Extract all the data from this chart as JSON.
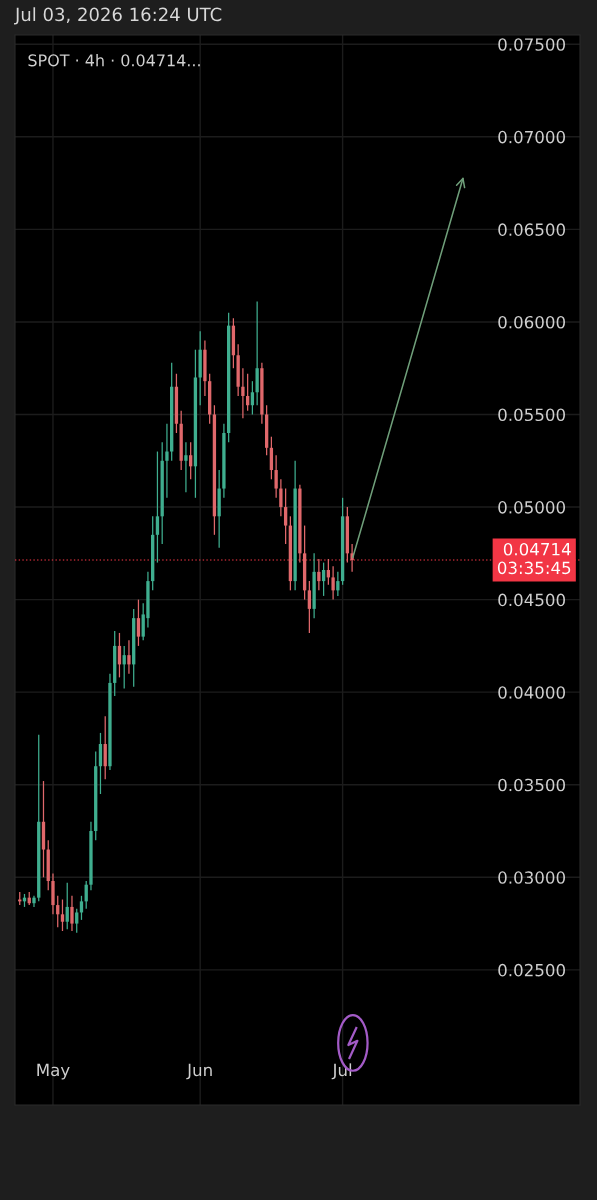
{
  "chart_data": {
    "type": "candlestick",
    "title": "Jul 03, 2026 16:24 UTC",
    "subtitle": "SPOT · 4h · 0.04714...",
    "x": [
      "2026-04-24",
      "2026-04-25",
      "2026-04-26",
      "2026-04-27",
      "2026-04-28",
      "2026-04-29",
      "2026-04-30",
      "2026-05-01",
      "2026-05-02",
      "2026-05-03",
      "2026-05-04",
      "2026-05-05",
      "2026-05-06",
      "2026-05-07",
      "2026-05-08",
      "2026-05-09",
      "2026-05-10",
      "2026-05-11",
      "2026-05-12",
      "2026-05-13",
      "2026-05-14",
      "2026-05-15",
      "2026-05-16",
      "2026-05-17",
      "2026-05-18",
      "2026-05-19",
      "2026-05-20",
      "2026-05-21",
      "2026-05-22",
      "2026-05-23",
      "2026-05-24",
      "2026-05-25",
      "2026-05-26",
      "2026-05-27",
      "2026-05-28",
      "2026-05-29",
      "2026-05-30",
      "2026-05-31",
      "2026-06-01",
      "2026-06-02",
      "2026-06-03",
      "2026-06-04",
      "2026-06-05",
      "2026-06-06",
      "2026-06-07",
      "2026-06-08",
      "2026-06-09",
      "2026-06-10",
      "2026-06-11",
      "2026-06-12",
      "2026-06-13",
      "2026-06-14",
      "2026-06-15",
      "2026-06-16",
      "2026-06-17",
      "2026-06-18",
      "2026-06-19",
      "2026-06-20",
      "2026-06-21",
      "2026-06-22",
      "2026-06-23",
      "2026-06-24",
      "2026-06-25",
      "2026-06-26",
      "2026-06-27",
      "2026-06-28",
      "2026-06-29",
      "2026-06-30",
      "2026-07-01",
      "2026-07-02",
      "2026-07-03"
    ],
    "ohlc": [
      [
        0.0288,
        0.0292,
        0.0285,
        0.0287
      ],
      [
        0.0287,
        0.0291,
        0.0284,
        0.0289
      ],
      [
        0.0289,
        0.0292,
        0.0285,
        0.0286
      ],
      [
        0.0286,
        0.029,
        0.0284,
        0.0289
      ],
      [
        0.0289,
        0.0377,
        0.0287,
        0.033
      ],
      [
        0.033,
        0.0352,
        0.03,
        0.0315
      ],
      [
        0.0315,
        0.032,
        0.0293,
        0.0298
      ],
      [
        0.0298,
        0.0302,
        0.028,
        0.0285
      ],
      [
        0.0285,
        0.029,
        0.0273,
        0.028
      ],
      [
        0.028,
        0.0288,
        0.0271,
        0.0276
      ],
      [
        0.0276,
        0.0297,
        0.0272,
        0.0284
      ],
      [
        0.0284,
        0.029,
        0.0271,
        0.0275
      ],
      [
        0.0275,
        0.0283,
        0.027,
        0.0281
      ],
      [
        0.0281,
        0.029,
        0.0277,
        0.0287
      ],
      [
        0.0287,
        0.0298,
        0.0283,
        0.0296
      ],
      [
        0.0296,
        0.033,
        0.0293,
        0.0325
      ],
      [
        0.0325,
        0.0368,
        0.032,
        0.036
      ],
      [
        0.036,
        0.0378,
        0.0345,
        0.0372
      ],
      [
        0.0372,
        0.0387,
        0.0353,
        0.036
      ],
      [
        0.036,
        0.041,
        0.0358,
        0.0405
      ],
      [
        0.0405,
        0.0433,
        0.0398,
        0.0425
      ],
      [
        0.0425,
        0.0432,
        0.0408,
        0.0415
      ],
      [
        0.0415,
        0.0425,
        0.0402,
        0.042
      ],
      [
        0.042,
        0.0428,
        0.041,
        0.0415
      ],
      [
        0.0415,
        0.0445,
        0.0403,
        0.044
      ],
      [
        0.044,
        0.045,
        0.0425,
        0.043
      ],
      [
        0.043,
        0.0448,
        0.0428,
        0.0442
      ],
      [
        0.044,
        0.0465,
        0.0435,
        0.046
      ],
      [
        0.046,
        0.0495,
        0.0455,
        0.0485
      ],
      [
        0.0485,
        0.053,
        0.047,
        0.0495
      ],
      [
        0.0495,
        0.0535,
        0.048,
        0.0525
      ],
      [
        0.0525,
        0.0545,
        0.0505,
        0.053
      ],
      [
        0.053,
        0.0578,
        0.0525,
        0.0565
      ],
      [
        0.0565,
        0.0572,
        0.054,
        0.0545
      ],
      [
        0.0545,
        0.0552,
        0.052,
        0.0525
      ],
      [
        0.0525,
        0.0535,
        0.0508,
        0.0528
      ],
      [
        0.0528,
        0.0535,
        0.0515,
        0.0522
      ],
      [
        0.0522,
        0.0585,
        0.0505,
        0.057
      ],
      [
        0.057,
        0.0595,
        0.0555,
        0.0585
      ],
      [
        0.0585,
        0.059,
        0.056,
        0.0568
      ],
      [
        0.0568,
        0.0572,
        0.0545,
        0.055
      ],
      [
        0.055,
        0.0555,
        0.0485,
        0.0495
      ],
      [
        0.0495,
        0.052,
        0.0478,
        0.051
      ],
      [
        0.051,
        0.0545,
        0.0505,
        0.054
      ],
      [
        0.054,
        0.0605,
        0.0535,
        0.0598
      ],
      [
        0.0598,
        0.0602,
        0.0575,
        0.0582
      ],
      [
        0.0582,
        0.0588,
        0.056,
        0.0565
      ],
      [
        0.0565,
        0.0575,
        0.0548,
        0.056
      ],
      [
        0.056,
        0.0572,
        0.0552,
        0.0555
      ],
      [
        0.0555,
        0.0568,
        0.055,
        0.0562
      ],
      [
        0.0562,
        0.0611,
        0.0555,
        0.0575
      ],
      [
        0.0575,
        0.0578,
        0.0545,
        0.055
      ],
      [
        0.055,
        0.0555,
        0.0528,
        0.0532
      ],
      [
        0.0532,
        0.0538,
        0.0515,
        0.052
      ],
      [
        0.052,
        0.0528,
        0.0505,
        0.051
      ],
      [
        0.051,
        0.0515,
        0.0495,
        0.05
      ],
      [
        0.05,
        0.051,
        0.048,
        0.049
      ],
      [
        0.049,
        0.0495,
        0.0455,
        0.046
      ],
      [
        0.046,
        0.0525,
        0.0455,
        0.051
      ],
      [
        0.051,
        0.0512,
        0.047,
        0.0475
      ],
      [
        0.0475,
        0.049,
        0.045,
        0.0455
      ],
      [
        0.0455,
        0.046,
        0.0432,
        0.0445
      ],
      [
        0.0445,
        0.0475,
        0.044,
        0.0465
      ],
      [
        0.0465,
        0.0472,
        0.0455,
        0.046
      ],
      [
        0.046,
        0.047,
        0.0452,
        0.0466
      ],
      [
        0.0466,
        0.0472,
        0.0458,
        0.0462
      ],
      [
        0.0462,
        0.0468,
        0.045,
        0.0455
      ],
      [
        0.0455,
        0.0465,
        0.0452,
        0.046
      ],
      [
        0.046,
        0.0505,
        0.0458,
        0.0495
      ],
      [
        0.0495,
        0.05,
        0.047,
        0.0475
      ],
      [
        0.0475,
        0.048,
        0.0465,
        0.04714
      ]
    ],
    "xlim": [
      "2026-04-23",
      "2026-08-20"
    ],
    "xticks": [
      {
        "value": "2026-05-01",
        "label": "May"
      },
      {
        "value": "2026-06-01",
        "label": "Jun"
      },
      {
        "value": "2026-07-01",
        "label": "Jul"
      }
    ],
    "ylim": [
      0.0177,
      0.0755
    ],
    "yticks": [
      {
        "value": 0.025,
        "label": "0.02500"
      },
      {
        "value": 0.03,
        "label": "0.03000"
      },
      {
        "value": 0.035,
        "label": "0.03500"
      },
      {
        "value": 0.04,
        "label": "0.04000"
      },
      {
        "value": 0.045,
        "label": "0.04500"
      },
      {
        "value": 0.05,
        "label": "0.05000"
      },
      {
        "value": 0.055,
        "label": "0.05500"
      },
      {
        "value": 0.06,
        "label": "0.06000"
      },
      {
        "value": 0.065,
        "label": "0.06500"
      },
      {
        "value": 0.07,
        "label": "0.07000"
      },
      {
        "value": 0.075,
        "label": "0.07500"
      }
    ],
    "ref_lines": [
      {
        "axis": "y",
        "value": 0.04714,
        "label": "0.04714\n03:35:45",
        "color": "#f23645",
        "line_style": "dotted"
      }
    ],
    "grid": true
  }
}
